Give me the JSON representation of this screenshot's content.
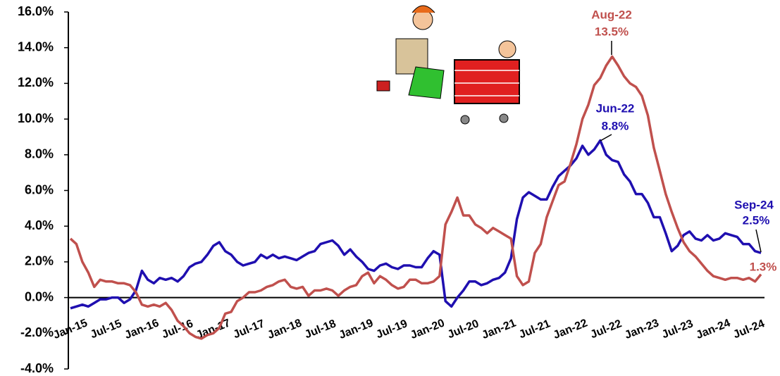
{
  "chart_data": {
    "type": "line",
    "categories": [
      "Jan-15",
      null,
      null,
      null,
      null,
      null,
      "Jul-15",
      null,
      null,
      null,
      null,
      null,
      "Jan-16",
      null,
      null,
      null,
      null,
      null,
      "Jul-16",
      null,
      null,
      null,
      null,
      null,
      "Jan-17",
      null,
      null,
      null,
      null,
      null,
      "Jul-17",
      null,
      null,
      null,
      null,
      null,
      "Jan-18",
      null,
      null,
      null,
      null,
      null,
      "Jul-18",
      null,
      null,
      null,
      null,
      null,
      "Jan-19",
      null,
      null,
      null,
      null,
      null,
      "Jul-19",
      null,
      null,
      null,
      null,
      null,
      "Jan-20",
      null,
      null,
      null,
      null,
      null,
      "Jul-20",
      null,
      null,
      null,
      null,
      null,
      "Jan-21",
      null,
      null,
      null,
      null,
      null,
      "Jul-21",
      null,
      null,
      null,
      null,
      null,
      "Jan-22",
      null,
      null,
      null,
      null,
      null,
      "Jul-22",
      null,
      null,
      null,
      null,
      null,
      "Jan-23",
      null,
      null,
      null,
      null,
      null,
      "Jul-23",
      null,
      null,
      null,
      null,
      null,
      "Jan-24",
      null,
      null,
      null,
      null,
      null,
      "Jul-24",
      null,
      null
    ],
    "series": [
      {
        "color": "#1f0fb0",
        "values": [
          -0.6,
          -0.5,
          -0.4,
          -0.5,
          -0.3,
          -0.1,
          -0.1,
          0.0,
          0.0,
          -0.3,
          -0.1,
          0.4,
          1.5,
          1.0,
          0.8,
          1.1,
          1.0,
          1.1,
          0.9,
          1.2,
          1.7,
          1.9,
          2.0,
          2.4,
          2.9,
          3.1,
          2.6,
          2.4,
          2.0,
          1.8,
          1.9,
          2.0,
          2.4,
          2.2,
          2.4,
          2.2,
          2.3,
          2.2,
          2.1,
          2.3,
          2.5,
          2.6,
          3.0,
          3.1,
          3.2,
          2.9,
          2.4,
          2.7,
          2.3,
          2.0,
          1.6,
          1.5,
          1.8,
          1.9,
          1.7,
          1.6,
          1.8,
          1.8,
          1.7,
          1.7,
          2.2,
          2.6,
          2.4,
          -0.2,
          -0.5,
          0.0,
          0.4,
          0.9,
          0.9,
          0.7,
          0.8,
          1.0,
          1.1,
          1.4,
          2.2,
          4.4,
          5.6,
          5.9,
          5.7,
          5.5,
          5.5,
          6.2,
          6.8,
          7.1,
          7.4,
          7.8,
          8.5,
          8.0,
          8.3,
          8.8,
          8.0,
          7.7,
          7.6,
          6.9,
          6.5,
          5.8,
          5.8,
          5.3,
          4.5,
          4.5,
          3.6,
          2.6,
          2.9,
          3.5,
          3.7,
          3.3,
          3.2,
          3.5,
          3.2,
          3.3,
          3.6,
          3.5,
          3.4,
          3.0,
          3.0,
          2.6,
          2.5
        ]
      },
      {
        "color": "#c0504d",
        "values": [
          3.3,
          3.0,
          2.0,
          1.4,
          0.6,
          1.0,
          0.9,
          0.9,
          0.8,
          0.8,
          0.7,
          0.3,
          -0.4,
          -0.5,
          -0.4,
          -0.5,
          -0.3,
          -0.7,
          -1.3,
          -1.6,
          -2.0,
          -2.2,
          -2.3,
          -2.1,
          -2.0,
          -1.7,
          -0.9,
          -0.8,
          -0.2,
          0.0,
          0.3,
          0.3,
          0.4,
          0.6,
          0.7,
          0.9,
          1.0,
          0.6,
          0.5,
          0.6,
          0.1,
          0.4,
          0.4,
          0.5,
          0.4,
          0.1,
          0.4,
          0.6,
          0.7,
          1.2,
          1.4,
          0.8,
          1.2,
          1.0,
          0.7,
          0.5,
          0.6,
          1.0,
          1.0,
          0.8,
          0.8,
          0.9,
          1.2,
          4.1,
          4.8,
          5.6,
          4.6,
          4.6,
          4.1,
          3.9,
          3.6,
          3.9,
          3.7,
          3.5,
          3.3,
          1.2,
          0.7,
          0.9,
          2.5,
          3.0,
          4.5,
          5.4,
          6.3,
          6.5,
          7.5,
          8.6,
          10.0,
          10.8,
          11.9,
          12.3,
          13.0,
          13.5,
          13.0,
          12.4,
          12.0,
          11.8,
          11.3,
          10.2,
          8.4,
          7.1,
          5.8,
          4.8,
          3.9,
          3.1,
          2.6,
          2.3,
          1.9,
          1.5,
          1.2,
          1.1,
          1.0,
          1.1,
          1.1,
          1.0,
          1.1,
          0.9,
          1.3
        ]
      }
    ],
    "ylim": [
      -4,
      16
    ],
    "yticks": [
      {
        "value": -4,
        "label": "-4.0%"
      },
      {
        "value": -2,
        "label": "-2.0%"
      },
      {
        "value": 0,
        "label": "0.0%"
      },
      {
        "value": 2,
        "label": "2.0%"
      },
      {
        "value": 4,
        "label": "4.0%"
      },
      {
        "value": 6,
        "label": "6.0%"
      },
      {
        "value": 8,
        "label": "8.0%"
      },
      {
        "value": 10,
        "label": "10.0%"
      },
      {
        "value": 12,
        "label": "12.0%"
      },
      {
        "value": 14,
        "label": "14.0%"
      },
      {
        "value": 16,
        "label": "16.0%"
      }
    ],
    "grid": false,
    "annotations": [
      {
        "lines": [
          "Aug-22",
          "13.5%"
        ]
      },
      {
        "lines": [
          "Jun-22",
          "8.8%"
        ]
      },
      {
        "lines": [
          "Sep-24",
          "2.5%"
        ]
      },
      {
        "lines": [
          "1.3%"
        ]
      }
    ]
  }
}
